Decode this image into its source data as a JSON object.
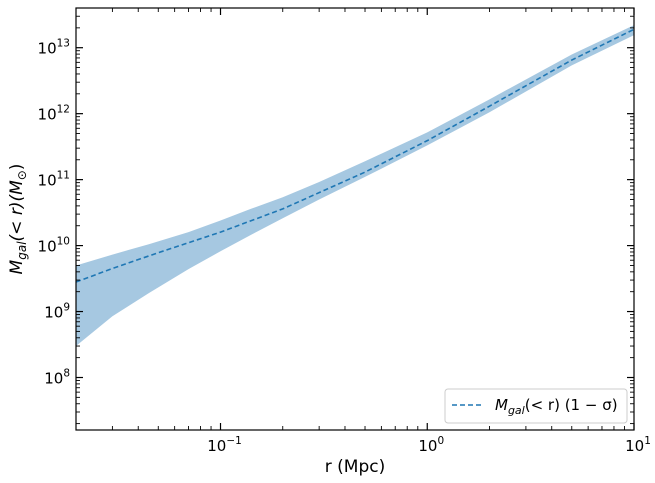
{
  "chart_data": {
    "type": "area",
    "title": "",
    "xlabel": "r (Mpc)",
    "ylabel_math": {
      "base": "M",
      "sub": "gal",
      "rest": "(< r)(M",
      "sun": "⊙",
      "close": ")"
    },
    "x_scale": "log",
    "y_scale": "log",
    "xlim": [
      0.02,
      10
    ],
    "ylim": [
      16000000.0,
      40000000000000.0
    ],
    "x_ticks": [
      {
        "value": 0.1,
        "base": "10",
        "exp": "−1"
      },
      {
        "value": 1,
        "base": "10",
        "exp": "0"
      },
      {
        "value": 10,
        "base": "10",
        "exp": "1"
      }
    ],
    "y_ticks": [
      {
        "value": 100000000.0,
        "base": "10",
        "exp": "8"
      },
      {
        "value": 1000000000.0,
        "base": "10",
        "exp": "9"
      },
      {
        "value": 10000000000.0,
        "base": "10",
        "exp": "10"
      },
      {
        "value": 100000000000.0,
        "base": "10",
        "exp": "11"
      },
      {
        "value": 1000000000000.0,
        "base": "10",
        "exp": "12"
      },
      {
        "value": 10000000000000.0,
        "base": "10",
        "exp": "13"
      }
    ],
    "grid": false,
    "legend_position": "lower-right",
    "series": [
      {
        "kind": "dashed-line",
        "color": "#1f77b4",
        "legend": {
          "base": "M",
          "sub": "gal",
          "rest": "(< r) (1 − σ)"
        },
        "x": [
          0.02,
          0.03,
          0.05,
          0.1,
          0.2,
          0.5,
          1,
          2,
          5,
          10
        ],
        "y": [
          2800000000.0,
          4500000000.0,
          7800000000.0,
          16000000000.0,
          36000000000.0,
          130000000000.0,
          390000000000.0,
          1300000000000.0,
          6500000000000.0,
          19000000000000.0
        ]
      },
      {
        "kind": "band",
        "color": "#a6c8e1",
        "x": [
          0.02,
          0.03,
          0.045,
          0.07,
          0.1,
          0.14,
          0.2,
          0.3,
          0.5,
          1,
          2,
          5,
          10
        ],
        "upper": [
          5000000000.0,
          7300000000.0,
          10500000000.0,
          16000000000.0,
          24000000000.0,
          36000000000.0,
          54000000000.0,
          92000000000.0,
          190000000000.0,
          520000000000.0,
          1650000000000.0,
          7900000000000.0,
          22000000000000.0
        ],
        "lower": [
          300000000.0,
          850000000.0,
          1900000000.0,
          4400000000.0,
          8200000000.0,
          14500000000.0,
          26000000000.0,
          50000000000.0,
          110000000000.0,
          330000000000.0,
          1050000000000.0,
          5400000000000.0,
          15500000000000.0
        ]
      }
    ]
  }
}
